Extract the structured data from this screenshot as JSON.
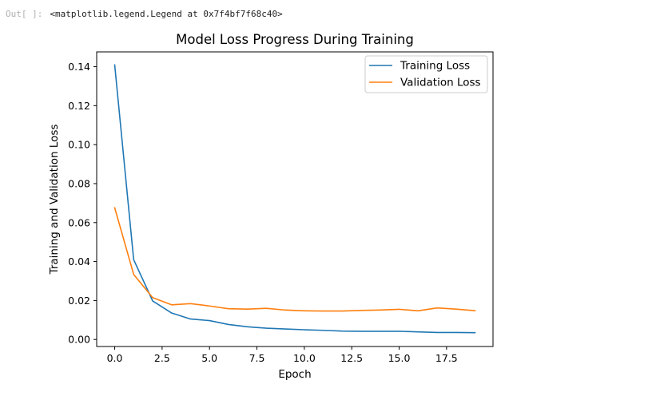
{
  "cell": {
    "prompt": "Out[ ]:",
    "output_text": "<matplotlib.legend.Legend at 0x7f4bf7f68c40>"
  },
  "colors": {
    "training": "#1f77b4",
    "validation": "#ff7f0e",
    "axis": "#000000",
    "legend_border": "#cccccc"
  },
  "chart_data": {
    "type": "line",
    "title": "Model Loss Progress During Training",
    "xlabel": "Epoch",
    "ylabel": "Training and Validation Loss",
    "xlim": [
      -0.95,
      19.95
    ],
    "ylim": [
      -0.0036,
      0.1476
    ],
    "xticks": [
      0.0,
      2.5,
      5.0,
      7.5,
      10.0,
      12.5,
      15.0,
      17.5
    ],
    "xtick_labels": [
      "0.0",
      "2.5",
      "5.0",
      "7.5",
      "10.0",
      "12.5",
      "15.0",
      "17.5"
    ],
    "yticks": [
      0.0,
      0.02,
      0.04,
      0.06,
      0.08,
      0.1,
      0.12,
      0.14
    ],
    "ytick_labels": [
      "0.00",
      "0.02",
      "0.04",
      "0.06",
      "0.08",
      "0.10",
      "0.12",
      "0.14"
    ],
    "grid": false,
    "legend_position": "top-right",
    "x": [
      0,
      1,
      2,
      3,
      4,
      5,
      6,
      7,
      8,
      9,
      10,
      11,
      12,
      13,
      14,
      15,
      16,
      17,
      18,
      19
    ],
    "series": [
      {
        "name": "Training Loss",
        "color": "#1f77b4",
        "values": [
          0.1409,
          0.041,
          0.0198,
          0.0136,
          0.0105,
          0.0097,
          0.0077,
          0.0065,
          0.0058,
          0.0054,
          0.005,
          0.0047,
          0.0043,
          0.0042,
          0.0042,
          0.0042,
          0.0039,
          0.0036,
          0.0036,
          0.0035
        ]
      },
      {
        "name": "Validation Loss",
        "color": "#ff7f0e",
        "values": [
          0.0676,
          0.0334,
          0.0215,
          0.0178,
          0.0184,
          0.0172,
          0.0158,
          0.0156,
          0.016,
          0.0151,
          0.0147,
          0.0146,
          0.0146,
          0.0149,
          0.0151,
          0.0155,
          0.0147,
          0.0162,
          0.0156,
          0.0148
        ]
      }
    ]
  }
}
